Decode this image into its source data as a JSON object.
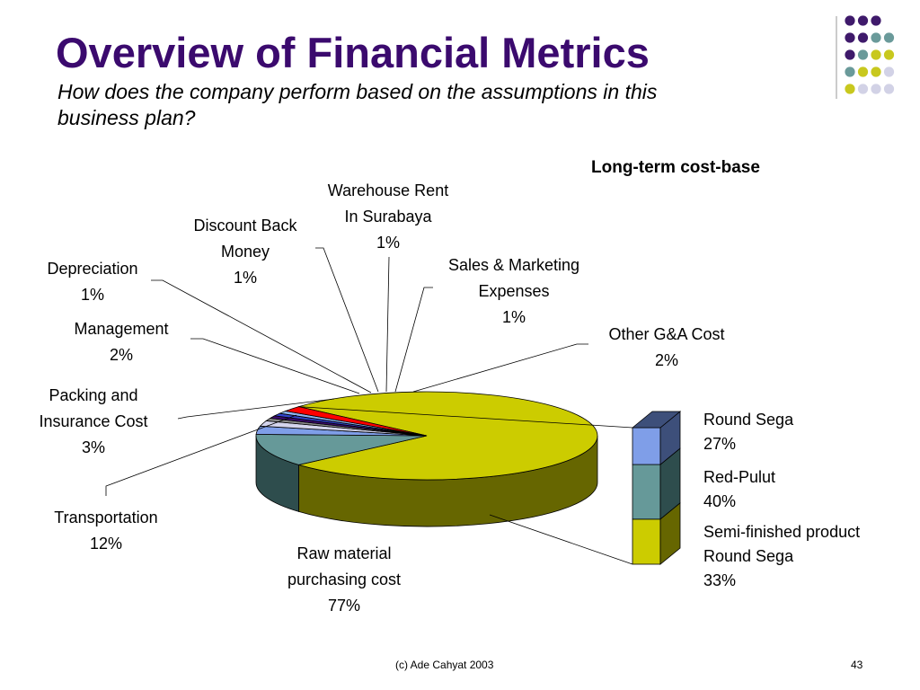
{
  "slide": {
    "title": "Overview of Financial Metrics",
    "subtitle": "How does the company perform based on the assumptions in this business plan?",
    "footer_credit": "(c) Ade Cahyat 2003",
    "page_number": "43"
  },
  "colors": {
    "title": "#3b0a6e",
    "decor_purple": "#3f1a6b",
    "decor_teal": "#6a9a9a",
    "decor_lime": "#c8c81e",
    "decor_lavender": "#d2d2e6"
  },
  "chart_data": [
    {
      "type": "pie",
      "title": "Long-term cost-base",
      "style": "3d-pie-of-bar",
      "slices": [
        {
          "label": "Raw material purchasing cost",
          "value": 77,
          "display": "77%",
          "color": "#cccc00",
          "side": "#666600"
        },
        {
          "label": "Transportation",
          "value": 12,
          "display": "12%",
          "color": "#669999",
          "side": "#2e4d4d"
        },
        {
          "label": "Packing and Insurance Cost",
          "value": 3,
          "display": "3%",
          "color": "#7f9ee8",
          "side": "#3d4f7a"
        },
        {
          "label": "Management",
          "value": 2,
          "display": "2%",
          "color": "#d4d4ec",
          "side": "#8c8ca8"
        },
        {
          "label": "Depreciation",
          "value": 1,
          "display": "1%",
          "color": "#8a8a8a",
          "side": "#454545"
        },
        {
          "label": "Discount Back Money",
          "value": 1,
          "display": "1%",
          "color": "#3b0a6e",
          "side": "#1e0538"
        },
        {
          "label": "Warehouse Rent In Surabaya",
          "value": 1,
          "display": "1%",
          "color": "#3344cc",
          "side": "#1a2266"
        },
        {
          "label": "Sales & Marketing Expenses",
          "value": 1,
          "display": "1%",
          "color": "#8fb6f0",
          "side": "#486090"
        },
        {
          "label": "Other G&A Cost",
          "value": 2,
          "display": "2%",
          "color": "#ff0000",
          "side": "#800000"
        }
      ],
      "breakdown_of": "Raw material purchasing cost",
      "breakdown": [
        {
          "label": "Semi-finished product Round Sega",
          "value": 33,
          "display": "33%",
          "color": "#cccc00",
          "side": "#666600"
        },
        {
          "label": "Red-Pulut",
          "value": 40,
          "display": "40%",
          "color": "#669999",
          "side": "#2e4d4d"
        },
        {
          "label": "Round Sega",
          "value": 27,
          "display": "27%",
          "color": "#7f9ee8",
          "side": "#3d4f7a"
        }
      ]
    }
  ]
}
